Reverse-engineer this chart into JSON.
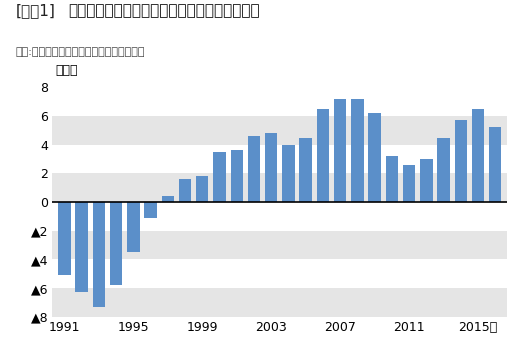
{
  "title_bracket": "[図表1]",
  "title_main": "東京都区部の転入超過数の推移（外国人含む）",
  "subtitle": "出所:総務省「住民基本台帳人口移動報告」",
  "ylabel": "８万人",
  "xlabel_suffix": "年",
  "years": [
    1991,
    1992,
    1993,
    1994,
    1995,
    1996,
    1997,
    1998,
    1999,
    2000,
    2001,
    2002,
    2003,
    2004,
    2005,
    2006,
    2007,
    2008,
    2009,
    2010,
    2011,
    2012,
    2013,
    2014,
    2015,
    2016
  ],
  "values": [
    -5.1,
    -6.3,
    -7.3,
    -5.8,
    -3.5,
    -1.1,
    0.4,
    1.6,
    1.8,
    3.5,
    3.6,
    4.6,
    4.8,
    4.0,
    4.5,
    6.5,
    7.2,
    7.2,
    6.2,
    3.2,
    2.6,
    3.0,
    4.5,
    5.7,
    6.5,
    5.2
  ],
  "bar_color": "#5b8fc9",
  "background_color": "#ffffff",
  "band_color": "#e5e5e5",
  "ylim": [
    -8,
    8
  ],
  "yticks": [
    -8,
    -6,
    -4,
    -2,
    0,
    2,
    4,
    6,
    8
  ],
  "xticks": [
    1991,
    1995,
    1999,
    2003,
    2007,
    2011,
    2015
  ],
  "title_fontsize": 11,
  "subtitle_fontsize": 8,
  "tick_fontsize": 9,
  "ylabel_fontsize": 9
}
